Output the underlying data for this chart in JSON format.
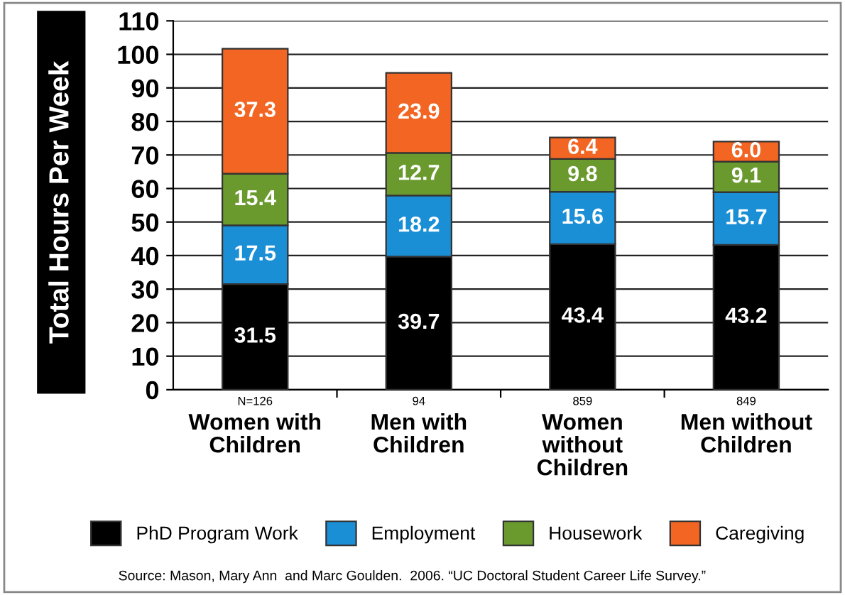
{
  "chart_data": {
    "type": "bar",
    "stacked": true,
    "ylabel": "Total Hours Per Week",
    "categories": [
      "N=126\nWomen with\nChildren",
      "94\nMen with\nChildren",
      "859\nWomen\nwithout\nChildren",
      "849\nMen without\nChildren"
    ],
    "series": [
      {
        "name": "PhD Program Work",
        "color": "#000000",
        "values": [
          31.5,
          39.7,
          43.4,
          43.2
        ],
        "value_labels": [
          "31.5",
          "39.7",
          "43.4",
          "43.2"
        ]
      },
      {
        "name": "Employment",
        "color": "#1a8fd6",
        "values": [
          17.5,
          18.2,
          15.6,
          15.7
        ],
        "value_labels": [
          "17.5",
          "18.2",
          "15.6",
          "15.7"
        ]
      },
      {
        "name": "Housework",
        "color": "#6a9a2e",
        "values": [
          15.4,
          12.7,
          9.8,
          9.1
        ],
        "value_labels": [
          "15.4",
          "12.7",
          "9.8",
          "9.1"
        ]
      },
      {
        "name": "Caregiving",
        "color": "#f26522",
        "values": [
          37.3,
          23.9,
          6.4,
          6.0
        ],
        "value_labels": [
          "37.3",
          "23.9",
          "6.4",
          "6.0"
        ]
      }
    ],
    "ylim": [
      0,
      110
    ],
    "yticks": [
      0,
      10,
      20,
      30,
      40,
      50,
      60,
      70,
      80,
      90,
      100,
      110
    ],
    "grid": "y",
    "legend": "bottom",
    "annotations": [
      "Source: Mason, Mary Ann  and Marc Goulden.  2006. “UC Doctoral Student Career Life Survey.”"
    ]
  }
}
